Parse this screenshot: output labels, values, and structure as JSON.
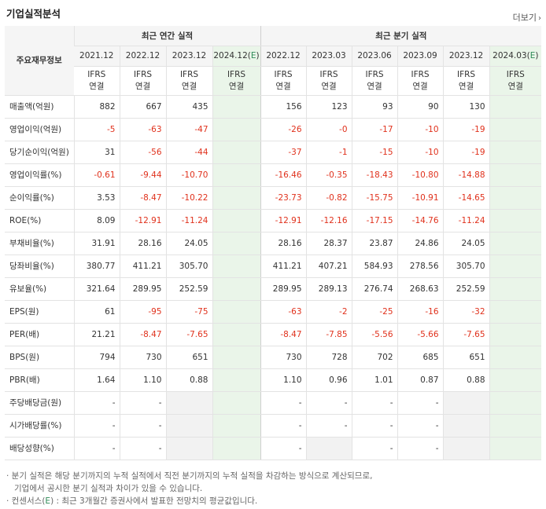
{
  "title": "기업실적분석",
  "more_label": "더보기",
  "row_header": "주요재무정보",
  "groups": {
    "annual": "최근 연간 실적",
    "quarterly": "최근 분기 실적"
  },
  "periods": {
    "annual": [
      "2021.12",
      "2022.12",
      "2023.12",
      "2024.12(E)"
    ],
    "quarterly": [
      "2022.12",
      "2023.03",
      "2023.06",
      "2023.09",
      "2023.12",
      "2024.03(E)"
    ]
  },
  "ifrs_top": "IFRS",
  "ifrs_bottom": "연결",
  "rows": [
    {
      "label": "매출액(억원)",
      "annual": [
        "882",
        "667",
        "435",
        ""
      ],
      "quarterly": [
        "156",
        "123",
        "93",
        "90",
        "130",
        ""
      ]
    },
    {
      "label": "영업이익(억원)",
      "annual": [
        "-5",
        "-63",
        "-47",
        ""
      ],
      "quarterly": [
        "-26",
        "-0",
        "-17",
        "-10",
        "-19",
        ""
      ]
    },
    {
      "label": "당기순이익(억원)",
      "annual": [
        "31",
        "-56",
        "-44",
        ""
      ],
      "quarterly": [
        "-37",
        "-1",
        "-15",
        "-10",
        "-19",
        ""
      ]
    },
    {
      "label": "영업이익률(%)",
      "annual": [
        "-0.61",
        "-9.44",
        "-10.70",
        ""
      ],
      "quarterly": [
        "-16.46",
        "-0.35",
        "-18.43",
        "-10.80",
        "-14.88",
        ""
      ]
    },
    {
      "label": "순이익률(%)",
      "annual": [
        "3.53",
        "-8.47",
        "-10.22",
        ""
      ],
      "quarterly": [
        "-23.73",
        "-0.82",
        "-15.75",
        "-10.91",
        "-14.65",
        ""
      ]
    },
    {
      "label": "ROE(%)",
      "annual": [
        "8.09",
        "-12.91",
        "-11.24",
        ""
      ],
      "quarterly": [
        "-12.91",
        "-12.16",
        "-17.15",
        "-14.76",
        "-11.24",
        ""
      ]
    },
    {
      "label": "부채비율(%)",
      "annual": [
        "31.91",
        "28.16",
        "24.05",
        ""
      ],
      "quarterly": [
        "28.16",
        "28.37",
        "23.87",
        "24.86",
        "24.05",
        ""
      ]
    },
    {
      "label": "당좌비율(%)",
      "annual": [
        "380.77",
        "411.21",
        "305.70",
        ""
      ],
      "quarterly": [
        "411.21",
        "407.21",
        "584.93",
        "278.56",
        "305.70",
        ""
      ]
    },
    {
      "label": "유보율(%)",
      "annual": [
        "321.64",
        "289.95",
        "252.59",
        ""
      ],
      "quarterly": [
        "289.95",
        "289.13",
        "276.74",
        "268.63",
        "252.59",
        ""
      ]
    },
    {
      "label": "EPS(원)",
      "annual": [
        "61",
        "-95",
        "-75",
        ""
      ],
      "quarterly": [
        "-63",
        "-2",
        "-25",
        "-16",
        "-32",
        ""
      ]
    },
    {
      "label": "PER(배)",
      "annual": [
        "21.21",
        "-8.47",
        "-7.65",
        ""
      ],
      "quarterly": [
        "-8.47",
        "-7.85",
        "-5.56",
        "-5.66",
        "-7.65",
        ""
      ]
    },
    {
      "label": "BPS(원)",
      "annual": [
        "794",
        "730",
        "651",
        ""
      ],
      "quarterly": [
        "730",
        "728",
        "702",
        "685",
        "651",
        ""
      ]
    },
    {
      "label": "PBR(배)",
      "annual": [
        "1.64",
        "1.10",
        "0.88",
        ""
      ],
      "quarterly": [
        "1.10",
        "0.96",
        "1.01",
        "0.87",
        "0.88",
        ""
      ]
    },
    {
      "label": "주당배당금(원)",
      "annual": [
        "-",
        "-",
        "",
        ""
      ],
      "quarterly": [
        "-",
        "-",
        "-",
        "-",
        "",
        ""
      ]
    },
    {
      "label": "시가배당률(%)",
      "annual": [
        "-",
        "-",
        "",
        ""
      ],
      "quarterly": [
        "-",
        "-",
        "-",
        "-",
        "",
        ""
      ]
    },
    {
      "label": "배당성향(%)",
      "annual": [
        "-",
        "-",
        "",
        ""
      ],
      "quarterly": [
        "-",
        "",
        "-",
        "-",
        "",
        ""
      ]
    }
  ],
  "notes": {
    "line1": "· 분기 실적은 해당 분기까지의 누적 실적에서 직전 분기까지의 누적 실적을 차감하는 방식으로 계산되므로,",
    "line2": "기업에서 공시한 분기 실적과 차이가 있을 수 있습니다.",
    "line3_prefix": "· 컨센서스(",
    "line3_e": "E",
    "line3_suffix": ") : 최근 3개월간 증권사에서 발표한 전망치의 평균값입니다."
  },
  "colors": {
    "negative": "#e0311c",
    "ifrs": "#e05a1f",
    "estimate_bg": "#eaf5e9",
    "estimate_text": "#2e8b57"
  }
}
